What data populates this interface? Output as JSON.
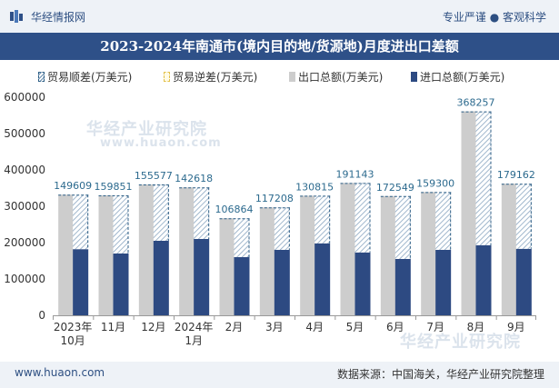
{
  "header": {
    "brand": "华经情报网",
    "tagline": "专业严谨 ● 客观科学"
  },
  "footer": {
    "site": "www.huaon.com",
    "source": "数据来源：中国海关，华经产业研究院整理"
  },
  "watermarks": [
    "华经产业研究院",
    "www.huaon.com",
    "华经产业研究院"
  ],
  "colors": {
    "title_bg": "#2e5088",
    "export_bar": "#cdcdcd",
    "import_bar": "#2d4a82",
    "surplus_line": "#2c5e85",
    "surplus_label": "#2c6a8e"
  },
  "chart_data": {
    "type": "bar",
    "title": "2023-2024年南通市(境内目的地/货源地)月度进出口差额",
    "legend": [
      "贸易顺差(万美元)",
      "贸易逆差(万美元)",
      "出口总额(万美元)",
      "进口总额(万美元)"
    ],
    "categories": [
      "2023年\n10月",
      "11月",
      "12月",
      "2024年\n1月",
      "2月",
      "3月",
      "4月",
      "5月",
      "6月",
      "7月",
      "8月",
      "9月"
    ],
    "series": [
      {
        "name": "出口总额(万美元)",
        "values": [
          332000,
          330000,
          360000,
          352000,
          267000,
          297000,
          329000,
          364000,
          328000,
          339000,
          561000,
          362000
        ]
      },
      {
        "name": "进口总额(万美元)",
        "values": [
          182000,
          170000,
          205000,
          210000,
          160000,
          180000,
          198000,
          173000,
          155000,
          180000,
          193000,
          183000
        ]
      },
      {
        "name": "贸易顺差(万美元)",
        "values": [
          149609,
          159851,
          155577,
          142618,
          106864,
          117208,
          130815,
          191143,
          172549,
          159300,
          368257,
          179162
        ]
      }
    ],
    "yticks": [
      0,
      100000,
      200000,
      300000,
      400000,
      500000,
      600000
    ],
    "ylim": [
      0,
      600000
    ],
    "grid": false
  }
}
